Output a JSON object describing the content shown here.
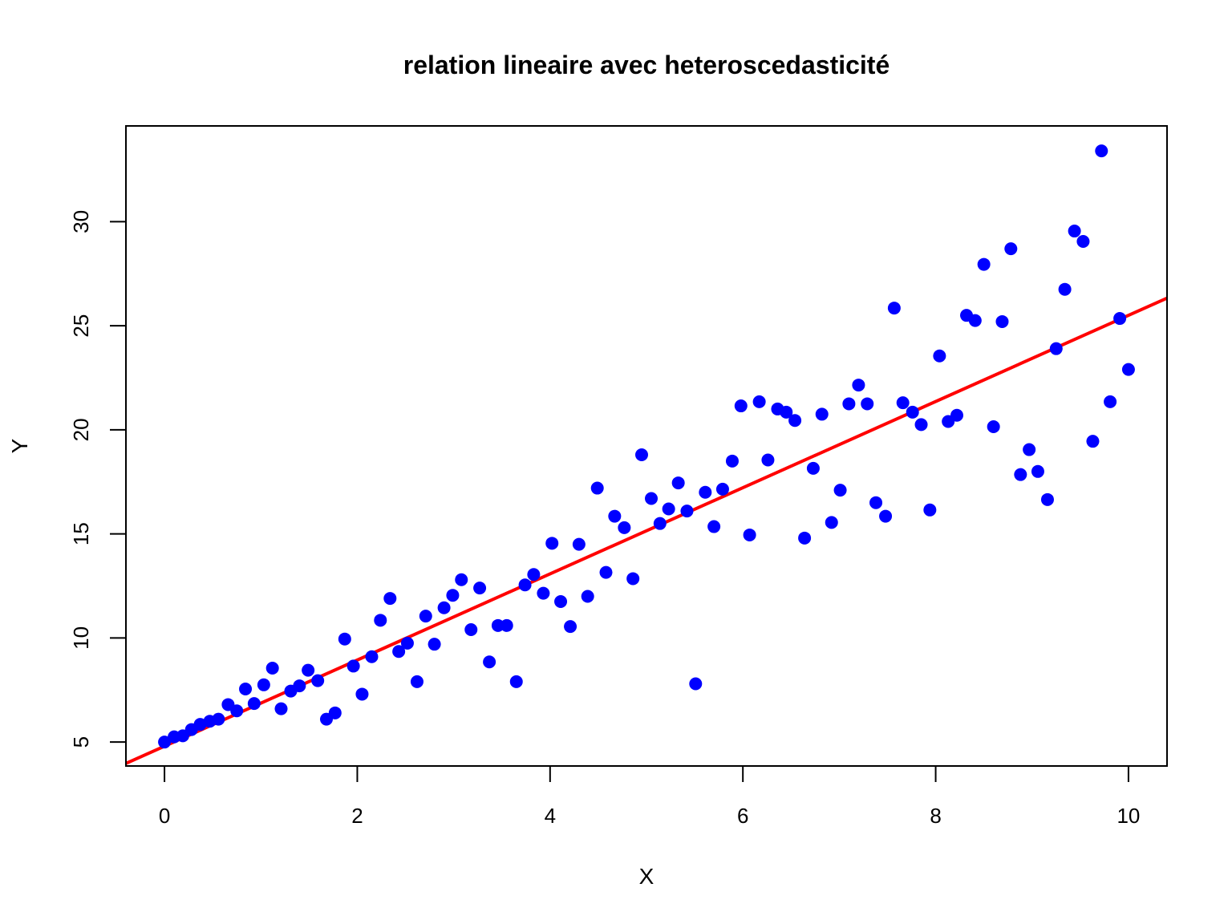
{
  "chart_data": {
    "type": "scatter",
    "title": "relation lineaire avec heteroscedasticité",
    "xlabel": "X",
    "ylabel": "Y",
    "xlim": [
      -0.4,
      10.4
    ],
    "ylim": [
      3.85,
      34.6
    ],
    "x_ticks": [
      0,
      2,
      4,
      6,
      8,
      10
    ],
    "y_ticks": [
      5,
      10,
      15,
      20,
      25,
      30
    ],
    "grid": false,
    "points_color": "#0000ff",
    "line_color": "#ff0000",
    "series": [
      {
        "kind": "points",
        "x": [
          0.0,
          0.1,
          0.19,
          0.28,
          0.37,
          0.47,
          0.56,
          0.66,
          0.75,
          0.84,
          0.93,
          1.03,
          1.12,
          1.21,
          1.31,
          1.4,
          1.49,
          1.59,
          1.68,
          1.77,
          1.87,
          1.96,
          2.05,
          2.15,
          2.24,
          2.34,
          2.43,
          2.52,
          2.62,
          2.71,
          2.8,
          2.9,
          2.99,
          3.08,
          3.18,
          3.27,
          3.37,
          3.46,
          3.55,
          3.65,
          3.74,
          3.83,
          3.93,
          4.02,
          4.11,
          4.21,
          4.3,
          4.39,
          4.49,
          4.58,
          4.67,
          4.77,
          4.86,
          4.95,
          5.05,
          5.14,
          5.23,
          5.33,
          5.42,
          5.51,
          5.61,
          5.7,
          5.79,
          5.89,
          5.98,
          6.07,
          6.17,
          6.26,
          6.36,
          6.45,
          6.54,
          6.64,
          6.73,
          6.82,
          6.92,
          7.01,
          7.1,
          7.2,
          7.29,
          7.38,
          7.48,
          7.57,
          7.66,
          7.76,
          7.85,
          7.94,
          8.04,
          8.13,
          8.22,
          8.32,
          8.41,
          8.5,
          8.6,
          8.69,
          8.78,
          8.88,
          8.97,
          9.06,
          9.16,
          9.25,
          9.34,
          9.44,
          9.53,
          9.63,
          9.72,
          9.81,
          9.91,
          10.0
        ],
        "y": [
          5.0,
          5.25,
          5.3,
          5.6,
          5.85,
          6.0,
          6.1,
          6.8,
          6.5,
          7.55,
          6.85,
          7.75,
          8.55,
          6.6,
          7.45,
          7.7,
          8.45,
          7.95,
          6.1,
          6.4,
          9.95,
          8.65,
          7.3,
          9.1,
          10.85,
          11.9,
          9.35,
          9.75,
          7.9,
          11.05,
          9.7,
          11.45,
          12.05,
          12.8,
          10.4,
          12.4,
          8.85,
          10.6,
          10.6,
          7.9,
          12.55,
          13.05,
          12.15,
          14.55,
          11.75,
          10.55,
          14.5,
          12.0,
          17.2,
          13.15,
          15.85,
          15.3,
          12.85,
          18.8,
          16.7,
          15.5,
          16.2,
          17.45,
          16.1,
          7.8,
          17.0,
          15.35,
          17.15,
          18.5,
          21.15,
          14.95,
          21.35,
          18.55,
          21.0,
          20.85,
          20.45,
          14.8,
          18.15,
          20.75,
          15.55,
          17.1,
          21.25,
          22.15,
          21.25,
          16.5,
          15.85,
          25.85,
          21.3,
          20.85,
          20.25,
          16.15,
          23.55,
          20.4,
          20.7,
          25.5,
          25.25,
          27.95,
          20.15,
          25.2,
          28.7,
          17.85,
          19.05,
          18.0,
          16.65,
          23.9,
          26.75,
          29.55,
          29.05,
          19.45,
          33.4,
          21.35,
          25.35,
          22.9
        ]
      },
      {
        "kind": "line",
        "intercept": 4.8,
        "slope": 2.07
      }
    ]
  }
}
